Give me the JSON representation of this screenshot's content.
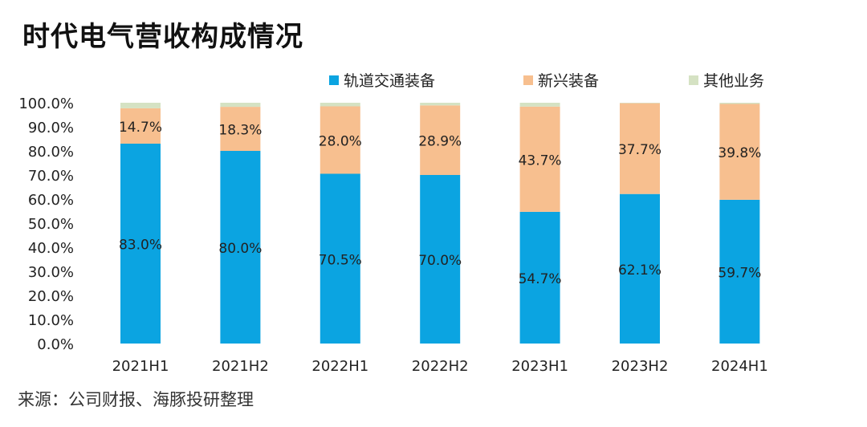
{
  "title": "时代电气营收构成情况",
  "source": "来源：公司财报、海豚投研整理",
  "chart_data": {
    "type": "bar",
    "stacked": true,
    "title": "时代电气营收构成情况",
    "categories": [
      "2021H1",
      "2021H2",
      "2022H1",
      "2022H2",
      "2023H1",
      "2023H2",
      "2024H1"
    ],
    "series": [
      {
        "name": "轨道交通装备",
        "color": "#0ba4e1",
        "values": [
          83.0,
          80.0,
          70.5,
          70.0,
          54.7,
          62.1,
          59.7
        ],
        "labels": [
          "83.0%",
          "80.0%",
          "70.5%",
          "70.0%",
          "54.7%",
          "62.1%",
          "59.7%"
        ]
      },
      {
        "name": "新兴装备",
        "color": "#f7bf8f",
        "values": [
          14.7,
          18.3,
          28.0,
          28.9,
          43.7,
          37.7,
          39.8
        ],
        "labels": [
          "14.7%",
          "18.3%",
          "28.0%",
          "28.9%",
          "43.7%",
          "37.7%",
          "39.8%"
        ]
      },
      {
        "name": "其他业务",
        "color": "#d5e2c3",
        "values": [
          2.3,
          1.7,
          1.5,
          1.1,
          1.6,
          0.2,
          0.5
        ]
      }
    ],
    "ylim": [
      0,
      100
    ],
    "yticks": [
      "0.0%",
      "10.0%",
      "20.0%",
      "30.0%",
      "40.0%",
      "50.0%",
      "60.0%",
      "70.0%",
      "80.0%",
      "90.0%",
      "100.0%"
    ],
    "legend": "top-right",
    "grid": false
  }
}
